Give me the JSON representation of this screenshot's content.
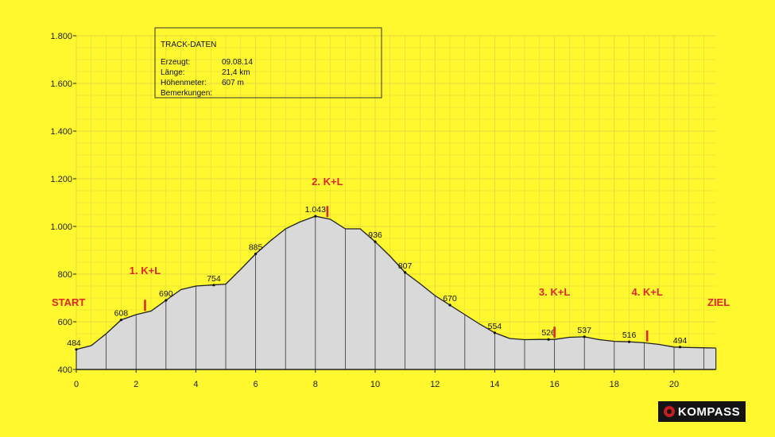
{
  "chart_data": {
    "type": "area",
    "x_ticks": [
      0,
      2,
      4,
      6,
      8,
      10,
      12,
      14,
      16,
      18,
      20
    ],
    "y_ticks": [
      400,
      600,
      800,
      1000,
      1200,
      1400,
      1600,
      1800
    ],
    "y_tick_labels": [
      "400",
      "600",
      "800",
      "1.000",
      "1.200",
      "1.400",
      "1.600",
      "1.800"
    ],
    "xlim": [
      0,
      21.4
    ],
    "ylim": [
      400,
      1800
    ],
    "grid": true,
    "profile": [
      [
        0,
        484
      ],
      [
        0.5,
        500
      ],
      [
        1.0,
        550
      ],
      [
        1.5,
        608
      ],
      [
        2.0,
        630
      ],
      [
        2.5,
        645
      ],
      [
        3.0,
        690
      ],
      [
        3.5,
        735
      ],
      [
        4.0,
        750
      ],
      [
        4.5,
        754
      ],
      [
        5.0,
        758
      ],
      [
        5.5,
        820
      ],
      [
        6.0,
        885
      ],
      [
        6.5,
        940
      ],
      [
        7.0,
        990
      ],
      [
        7.5,
        1020
      ],
      [
        8.0,
        1043
      ],
      [
        8.5,
        1030
      ],
      [
        9.0,
        990
      ],
      [
        9.5,
        990
      ],
      [
        10.0,
        936
      ],
      [
        10.5,
        875
      ],
      [
        11.0,
        807
      ],
      [
        11.5,
        760
      ],
      [
        12.0,
        710
      ],
      [
        12.5,
        670
      ],
      [
        13.0,
        630
      ],
      [
        13.5,
        590
      ],
      [
        14.0,
        554
      ],
      [
        14.5,
        530
      ],
      [
        15.0,
        525
      ],
      [
        15.5,
        526
      ],
      [
        16.0,
        526
      ],
      [
        16.5,
        535
      ],
      [
        17.0,
        537
      ],
      [
        17.5,
        525
      ],
      [
        18.0,
        518
      ],
      [
        18.5,
        516
      ],
      [
        19.0,
        512
      ],
      [
        19.5,
        505
      ],
      [
        20.0,
        494
      ],
      [
        20.5,
        492
      ],
      [
        21.4,
        490
      ]
    ],
    "elevation_labels": [
      {
        "x": 0,
        "y": 484,
        "label": "484"
      },
      {
        "x": 1.5,
        "y": 608,
        "label": "608"
      },
      {
        "x": 3.0,
        "y": 690,
        "label": "690"
      },
      {
        "x": 4.6,
        "y": 754,
        "label": "754"
      },
      {
        "x": 6.0,
        "y": 885,
        "label": "885"
      },
      {
        "x": 8.0,
        "y": 1043,
        "label": "1.043"
      },
      {
        "x": 10.0,
        "y": 936,
        "label": "936"
      },
      {
        "x": 11.0,
        "y": 807,
        "label": "807"
      },
      {
        "x": 12.5,
        "y": 670,
        "label": "670"
      },
      {
        "x": 14.0,
        "y": 554,
        "label": "554"
      },
      {
        "x": 15.8,
        "y": 526,
        "label": "526"
      },
      {
        "x": 17.0,
        "y": 537,
        "label": "537"
      },
      {
        "x": 18.5,
        "y": 516,
        "label": "516"
      },
      {
        "x": 20.2,
        "y": 494,
        "label": "494"
      }
    ],
    "markers": [
      {
        "x": 2.3,
        "label": "1. K+L"
      },
      {
        "x": 8.4,
        "label": "2. K+L"
      },
      {
        "x": 16.0,
        "label": "3. K+L"
      },
      {
        "x": 19.1,
        "label": "4. K+L"
      }
    ],
    "start_label": "START",
    "end_label": "ZIEL",
    "info_box": {
      "title": "TRACK-DATEN",
      "rows": [
        {
          "key": "Erzeugt:",
          "value": "09.08.14"
        },
        {
          "key": "Länge:",
          "value": "21,4 km"
        },
        {
          "key": "Höhenmeter:",
          "value": "607 m"
        },
        {
          "key": "Bemerkungen:",
          "value": ""
        }
      ]
    },
    "brand": "KOMPASS",
    "colors": {
      "background": "#fff82e",
      "grid": "#e0d740",
      "fill": "#d9d9d9",
      "outline": "#222222",
      "accent": "#e0262b"
    }
  }
}
